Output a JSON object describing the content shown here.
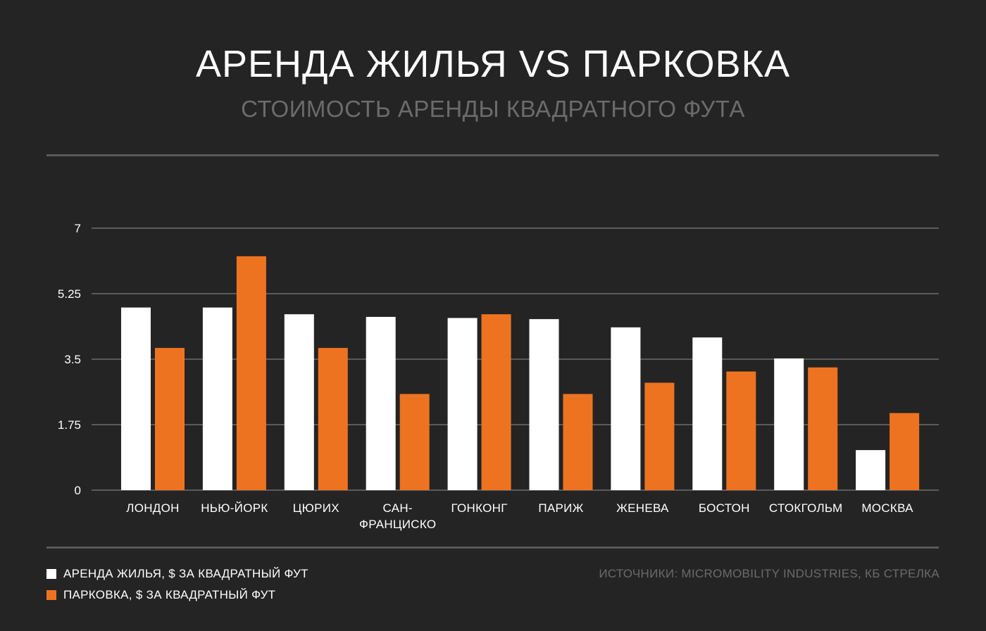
{
  "header": {
    "title": "АРЕНДА ЖИЛЬЯ VS ПАРКОВКА",
    "subtitle": "СТОИМОСТЬ АРЕНДЫ КВАДРАТНОГО ФУТА"
  },
  "colors": {
    "background": "#242424",
    "housing": "#ffffff",
    "parking": "#ee7320",
    "grid": "#5a5a5a",
    "muted": "#6b6b6b"
  },
  "chart_data": {
    "type": "bar",
    "title": "АРЕНДА ЖИЛЬЯ VS ПАРКОВКА",
    "subtitle": "СТОИМОСТЬ АРЕНДЫ КВАДРАТНОГО ФУТА",
    "xlabel": "",
    "ylabel": "",
    "ylim": [
      0,
      7
    ],
    "yticks": [
      0,
      1.75,
      3.5,
      5.25,
      7
    ],
    "ytick_labels": [
      "0",
      "1.75",
      "3.5",
      "5.25",
      "7"
    ],
    "grid": true,
    "categories": [
      [
        "ЛОНДОН"
      ],
      [
        "НЬЮ-ЙОРК"
      ],
      [
        "ЦЮРИХ"
      ],
      [
        "САН-",
        "ФРАНЦИСКО"
      ],
      [
        "ГОНКОНГ"
      ],
      [
        "ПАРИЖ"
      ],
      [
        "ЖЕНЕВА"
      ],
      [
        "БОСТОН"
      ],
      [
        "СТОКГОЛЬМ"
      ],
      [
        "МОСКВА"
      ]
    ],
    "series": [
      {
        "name": "АРЕНДА ЖИЛЬЯ, $ ЗА КВАДРАТНЫЙ ФУТ",
        "color": "#ffffff",
        "values": [
          4.88,
          4.88,
          4.7,
          4.63,
          4.6,
          4.57,
          4.35,
          4.08,
          3.52,
          1.07
        ]
      },
      {
        "name": "ПАРКОВКА, $ ЗА КВАДРАТНЫЙ ФУТ",
        "color": "#ee7320",
        "values": [
          3.8,
          6.25,
          3.8,
          2.57,
          4.7,
          2.57,
          2.87,
          3.17,
          3.28,
          2.06
        ]
      }
    ],
    "legend_position": "bottom-left"
  },
  "legend": {
    "items": [
      {
        "label": "АРЕНДА ЖИЛЬЯ, $ ЗА КВАДРАТНЫЙ ФУТ",
        "color": "#ffffff"
      },
      {
        "label": "ПАРКОВКА, $ ЗА КВАДРАТНЫЙ ФУТ",
        "color": "#ee7320"
      }
    ]
  },
  "footer": {
    "source": "ИСТОЧНИКИ: MICROMOBILITY INDUSTRIES, КБ СТРЕЛКА"
  }
}
